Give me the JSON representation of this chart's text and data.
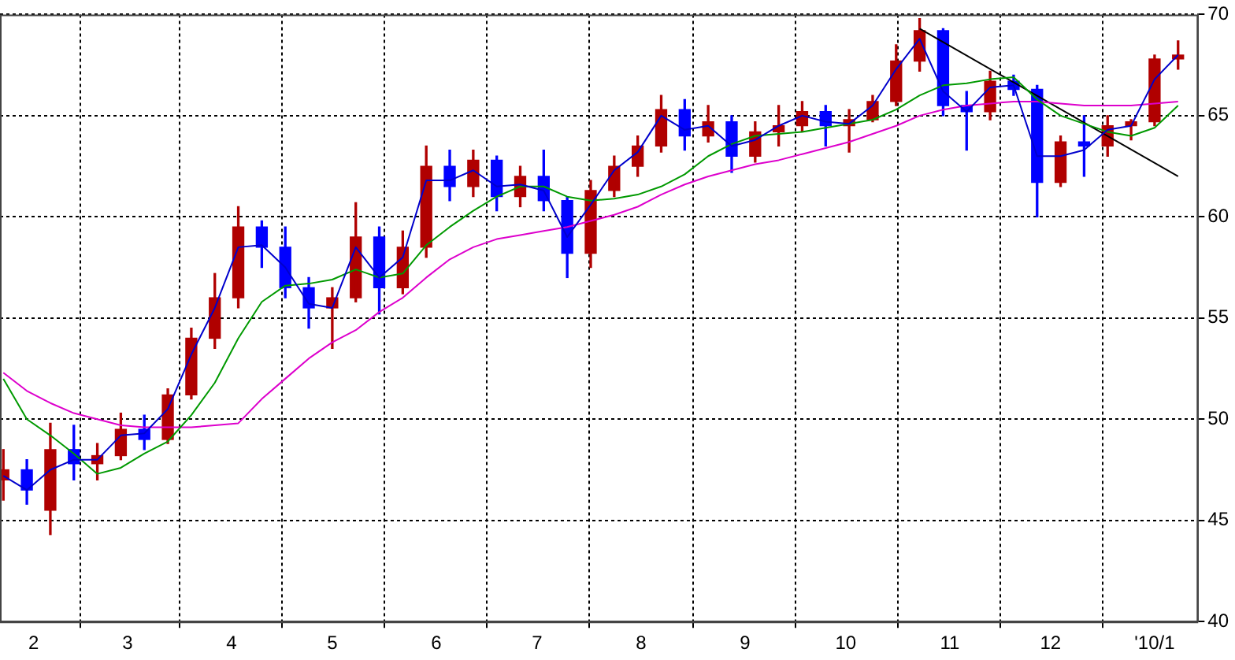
{
  "chart_data": {
    "type": "candlestick",
    "x": [
      "2009-01-23",
      "2009-01-30",
      "2009-02-06",
      "2009-02-13",
      "2009-02-20",
      "2009-02-27",
      "2009-03-06",
      "2009-03-13",
      "2009-03-20",
      "2009-03-27",
      "2009-04-03",
      "2009-04-10",
      "2009-04-17",
      "2009-04-24",
      "2009-05-01",
      "2009-05-08",
      "2009-05-15",
      "2009-05-22",
      "2009-05-29",
      "2009-06-05",
      "2009-06-12",
      "2009-06-19",
      "2009-06-26",
      "2009-07-03",
      "2009-07-10",
      "2009-07-17",
      "2009-07-24",
      "2009-07-31",
      "2009-08-07",
      "2009-08-14",
      "2009-08-21",
      "2009-08-28",
      "2009-09-04",
      "2009-09-11",
      "2009-09-18",
      "2009-09-25",
      "2009-10-02",
      "2009-10-09",
      "2009-10-16",
      "2009-10-23",
      "2009-10-30",
      "2009-11-06",
      "2009-11-13",
      "2009-11-20",
      "2009-11-27",
      "2009-12-04",
      "2009-12-11",
      "2009-12-18",
      "2009-12-25",
      "2010-01-01",
      "2010-01-08"
    ],
    "ohlc": [
      [
        47,
        48.5,
        46,
        47.5
      ],
      [
        47.5,
        48,
        45.8,
        46.5
      ],
      [
        45.5,
        49.8,
        44.3,
        48.5
      ],
      [
        48.5,
        49.7,
        47,
        47.8
      ],
      [
        47.8,
        48.8,
        47,
        48.2
      ],
      [
        48.2,
        50.3,
        48,
        49.5
      ],
      [
        49.5,
        50.2,
        48.5,
        49
      ],
      [
        49,
        51.5,
        48.8,
        51.2
      ],
      [
        51.2,
        54.5,
        51,
        54
      ],
      [
        54,
        57.2,
        53.5,
        56
      ],
      [
        56,
        60.5,
        55.5,
        59.5
      ],
      [
        59.5,
        59.8,
        57.5,
        58.5
      ],
      [
        58.5,
        59.5,
        56,
        56.5
      ],
      [
        56.5,
        57,
        54.5,
        55.5
      ],
      [
        55.5,
        56.5,
        53.5,
        56
      ],
      [
        56,
        60.7,
        55.8,
        59
      ],
      [
        59,
        59.5,
        55.2,
        56.5
      ],
      [
        56.5,
        59.3,
        56.2,
        58.5
      ],
      [
        58.5,
        63.5,
        58,
        62.5
      ],
      [
        62.5,
        63.3,
        60.8,
        61.5
      ],
      [
        61.5,
        63.3,
        61,
        62.8
      ],
      [
        62.8,
        63,
        60.3,
        61
      ],
      [
        61,
        62.5,
        60.5,
        62
      ],
      [
        62,
        63.3,
        60.3,
        60.8
      ],
      [
        60.8,
        61,
        57,
        58.2
      ],
      [
        58.2,
        61.8,
        57.5,
        61.3
      ],
      [
        61.3,
        63,
        61,
        62.5
      ],
      [
        62.5,
        64,
        62,
        63.5
      ],
      [
        63.5,
        66,
        63.2,
        65.3
      ],
      [
        65.3,
        65.8,
        63.3,
        64
      ],
      [
        64,
        65.5,
        63.7,
        64.7
      ],
      [
        64.7,
        65,
        62.2,
        63
      ],
      [
        63,
        64.7,
        62.7,
        64.2
      ],
      [
        64.2,
        65.5,
        63.5,
        64.5
      ],
      [
        64.5,
        65.7,
        64.2,
        65.2
      ],
      [
        65.2,
        65.5,
        63.5,
        64.5
      ],
      [
        64.5,
        65.3,
        63.2,
        64.8
      ],
      [
        64.8,
        66,
        64.7,
        65.7
      ],
      [
        65.7,
        68.5,
        65.5,
        67.7
      ],
      [
        67.7,
        69.8,
        67.2,
        69.2
      ],
      [
        69.2,
        69.3,
        65,
        65.5
      ],
      [
        65.5,
        66.2,
        63.3,
        65.2
      ],
      [
        65.2,
        67.2,
        64.8,
        66.7
      ],
      [
        66.7,
        67,
        66,
        66.3
      ],
      [
        66.3,
        66.5,
        60,
        61.7
      ],
      [
        61.7,
        64,
        61.5,
        63.7
      ],
      [
        63.7,
        65,
        62,
        63.5
      ],
      [
        63.5,
        65,
        63,
        64.5
      ],
      [
        64.5,
        64.8,
        63.8,
        64.7
      ],
      [
        64.7,
        68,
        64.5,
        67.8
      ],
      [
        67.8,
        68.7,
        67.3,
        68
      ]
    ],
    "colors": [
      "#b00000",
      "#0000ff",
      "#b00000",
      "#0000ff",
      "#b00000",
      "#b00000",
      "#0000ff",
      "#b00000",
      "#b00000",
      "#b00000",
      "#b00000",
      "#0000ff",
      "#0000ff",
      "#0000ff",
      "#b00000",
      "#b00000",
      "#0000ff",
      "#b00000",
      "#b00000",
      "#0000ff",
      "#b00000",
      "#0000ff",
      "#b00000",
      "#0000ff",
      "#0000ff",
      "#b00000",
      "#b00000",
      "#b00000",
      "#b00000",
      "#0000ff",
      "#b00000",
      "#0000ff",
      "#b00000",
      "#b00000",
      "#b00000",
      "#0000ff",
      "#b00000",
      "#b00000",
      "#b00000",
      "#b00000",
      "#0000ff",
      "#0000ff",
      "#b00000",
      "#0000ff",
      "#0000ff",
      "#b00000",
      "#0000ff",
      "#b00000",
      "#b00000",
      "#b00000",
      "#b00000"
    ],
    "series": [
      {
        "type": "line",
        "color": "#0000cc",
        "values": [
          47.2,
          46.5,
          47.5,
          48,
          48,
          49.2,
          49.3,
          50.5,
          53.2,
          55.5,
          58.5,
          58.6,
          57.5,
          55.7,
          55.5,
          58.5,
          57,
          58,
          61.8,
          61.8,
          62.3,
          61.5,
          61.6,
          61.3,
          59,
          60.6,
          62.3,
          63.2,
          65,
          64.3,
          64.5,
          63.5,
          63.8,
          64.5,
          65,
          64.7,
          64.6,
          65.5,
          67.3,
          68.8,
          66.2,
          65.2,
          66.4,
          66.5,
          63,
          63,
          63.3,
          64.3,
          64.5,
          66.8,
          68
        ]
      },
      {
        "type": "line",
        "color": "#009900",
        "values": [
          52,
          50,
          49.2,
          48.3,
          47.3,
          47.6,
          48.3,
          48.9,
          50.2,
          51.8,
          54,
          55.8,
          56.6,
          56.7,
          56.9,
          57.4,
          57,
          57.2,
          58.6,
          59.5,
          60.3,
          61,
          61.5,
          61.5,
          61,
          60.8,
          60.9,
          61.1,
          61.5,
          62.1,
          63,
          63.6,
          64,
          64.1,
          64.2,
          64.4,
          64.6,
          64.8,
          65.3,
          66,
          66.5,
          66.6,
          66.8,
          66.9,
          65.8,
          65,
          64.6,
          64.2,
          64,
          64.4,
          65.5
        ]
      },
      {
        "type": "line",
        "color": "#dd00cc",
        "values": [
          52.3,
          51.4,
          50.8,
          50.3,
          50,
          49.7,
          49.6,
          49.6,
          49.6,
          49.7,
          49.8,
          51,
          52,
          53,
          53.8,
          54.4,
          55.3,
          56,
          57,
          57.9,
          58.5,
          58.9,
          59.1,
          59.3,
          59.5,
          59.8,
          60.1,
          60.5,
          61.1,
          61.6,
          62,
          62.3,
          62.6,
          62.8,
          63.1,
          63.4,
          63.7,
          64.1,
          64.5,
          65,
          65.3,
          65.5,
          65.6,
          65.7,
          65.7,
          65.6,
          65.5,
          65.5,
          65.5,
          65.6,
          65.7
        ]
      },
      {
        "type": "line",
        "color": "#000000",
        "x": [
          "2009-10-23",
          "2010-01-08"
        ],
        "values": [
          69.3,
          62
        ]
      }
    ],
    "xlim": [
      "2009-01-22",
      "2010-01-14"
    ],
    "xticks": [
      {
        "value": "2009-02-01",
        "label": "2"
      },
      {
        "value": "2009-03-01",
        "label": "3"
      },
      {
        "value": "2009-04-01",
        "label": "4"
      },
      {
        "value": "2009-05-01",
        "label": "5"
      },
      {
        "value": "2009-06-01",
        "label": "6"
      },
      {
        "value": "2009-07-01",
        "label": "7"
      },
      {
        "value": "2009-08-01",
        "label": "8"
      },
      {
        "value": "2009-09-01",
        "label": "9"
      },
      {
        "value": "2009-10-01",
        "label": "10"
      },
      {
        "value": "2009-11-01",
        "label": "11"
      },
      {
        "value": "2009-12-01",
        "label": "12"
      },
      {
        "value": "2010-01-01",
        "label": "'10/1"
      }
    ],
    "ylim": [
      40,
      70
    ],
    "yticks": [
      40,
      45,
      50,
      55,
      60,
      65,
      70
    ],
    "grid": true,
    "legend": false
  }
}
